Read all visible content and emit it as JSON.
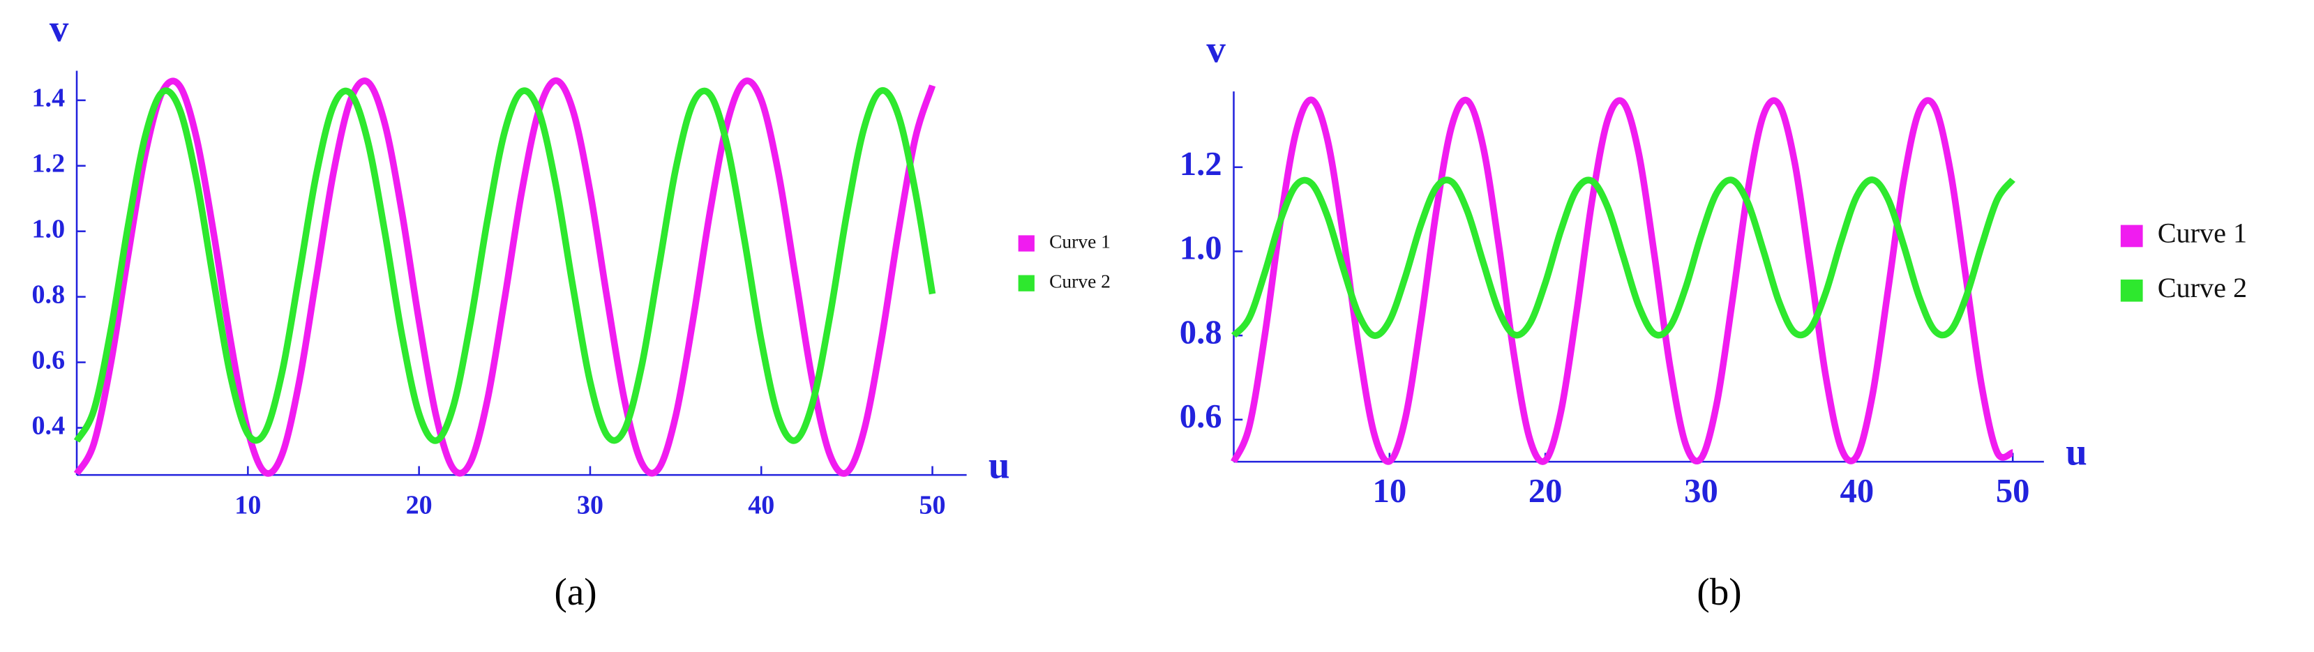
{
  "chart_data": [
    {
      "type": "line",
      "caption": "(a)",
      "x_label": "u",
      "y_label": "v",
      "legend": "right",
      "xlim": [
        0,
        52
      ],
      "ylim": [
        0.256,
        1.49
      ],
      "xticks": [
        10,
        20,
        30,
        40,
        50
      ],
      "yticks": [
        0.4,
        0.6,
        0.8,
        {
          "value": 1,
          "label": "1.0"
        },
        1.2,
        1.4
      ],
      "x": [
        0,
        1,
        2,
        3,
        4,
        5,
        6,
        7,
        8,
        9,
        10,
        11,
        12,
        13,
        14,
        15,
        16,
        17,
        18,
        19,
        20,
        21,
        22,
        23,
        24,
        25,
        26,
        27,
        28,
        29,
        30,
        31,
        32,
        33,
        34,
        35,
        36,
        37,
        38,
        39,
        40,
        41,
        42,
        43,
        44,
        45,
        46,
        47,
        48,
        49,
        50
      ],
      "series": [
        {
          "name": "Curve 1",
          "color": "#f01cf0",
          "values": [
            0.26,
            0.352,
            0.6,
            0.927,
            1.234,
            1.426,
            1.445,
            1.284,
            0.994,
            0.662,
            0.391,
            0.264,
            0.319,
            0.541,
            0.86,
            1.179,
            1.401,
            1.456,
            1.329,
            1.058,
            0.726,
            0.436,
            0.275,
            0.294,
            0.486,
            0.793,
            1.12,
            1.368,
            1.46,
            1.368,
            1.12,
            0.793,
            0.486,
            0.294,
            0.275,
            0.436,
            0.726,
            1.058,
            1.329,
            1.456,
            1.401,
            1.179,
            0.86,
            0.541,
            0.319,
            0.264,
            0.391,
            0.662,
            0.994,
            1.284,
            1.445
          ]
        },
        {
          "name": "Curve 2",
          "color": "#2ee82e",
          "values": [
            0.36,
            0.454,
            0.701,
            1.017,
            1.29,
            1.425,
            1.374,
            1.157,
            0.848,
            0.555,
            0.381,
            0.387,
            0.57,
            0.867,
            1.174,
            1.383,
            1.421,
            1.276,
            0.998,
            0.683,
            0.443,
            0.361,
            0.465,
            0.72,
            1.035,
            1.303,
            1.427,
            1.366,
            1.14,
            0.829,
            0.54,
            0.376,
            0.393,
            0.586,
            0.886,
            1.19,
            1.39,
            1.418,
            1.263,
            0.979,
            0.666,
            0.433,
            0.362,
            0.476,
            0.738,
            1.054,
            1.314,
            1.429,
            1.356,
            1.122,
            0.809
          ]
        }
      ]
    },
    {
      "type": "line",
      "caption": "(b)",
      "x_label": "u",
      "y_label": "v",
      "legend": "right",
      "xlim": [
        0,
        52
      ],
      "ylim": [
        0.5,
        1.38
      ],
      "xticks": [
        10,
        20,
        30,
        40,
        50
      ],
      "yticks": [
        0.6,
        0.8,
        {
          "value": 1,
          "label": "1.0"
        },
        1.2
      ],
      "x": [
        0,
        1,
        2,
        3,
        4,
        5,
        6,
        7,
        8,
        9,
        10,
        11,
        12,
        13,
        14,
        15,
        16,
        17,
        18,
        19,
        20,
        21,
        22,
        23,
        24,
        25,
        26,
        27,
        28,
        29,
        30,
        31,
        32,
        33,
        34,
        35,
        36,
        37,
        38,
        39,
        40,
        41,
        42,
        43,
        44,
        45,
        46,
        47,
        48,
        49,
        50
      ],
      "series": [
        {
          "name": "Curve 1",
          "color": "#f01cf0",
          "values": [
            0.5,
            0.584,
            0.802,
            1.071,
            1.284,
            1.36,
            1.268,
            1.044,
            0.777,
            0.568,
            0.501,
            0.601,
            0.829,
            1.096,
            1.299,
            1.358,
            1.25,
            1.018,
            0.751,
            0.554,
            0.503,
            0.619,
            0.855,
            1.121,
            1.312,
            1.354,
            1.232,
            0.991,
            0.727,
            0.542,
            0.508,
            0.638,
            0.882,
            1.145,
            1.324,
            1.349,
            1.212,
            0.964,
            0.703,
            0.531,
            0.514,
            0.659,
            0.909,
            1.168,
            1.334,
            1.343,
            1.19,
            0.937,
            0.681,
            0.522,
            0.522
          ]
        },
        {
          "name": "Curve 2",
          "color": "#2ee82e",
          "values": [
            0.8,
            0.842,
            0.95,
            1.074,
            1.157,
            1.161,
            1.085,
            0.963,
            0.851,
            0.8,
            0.835,
            0.938,
            1.062,
            1.152,
            1.165,
            1.095,
            0.975,
            0.86,
            0.802,
            0.828,
            0.925,
            1.05,
            1.146,
            1.167,
            1.105,
            0.988,
            0.87,
            0.804,
            0.821,
            0.913,
            1.038,
            1.139,
            1.169,
            1.115,
            1.001,
            0.88,
            0.807,
            0.816,
            0.902,
            1.026,
            1.132,
            1.17,
            1.124,
            1.014,
            0.891,
            0.811,
            0.811,
            0.891,
            1.013,
            1.123,
            1.17
          ]
        }
      ]
    }
  ]
}
